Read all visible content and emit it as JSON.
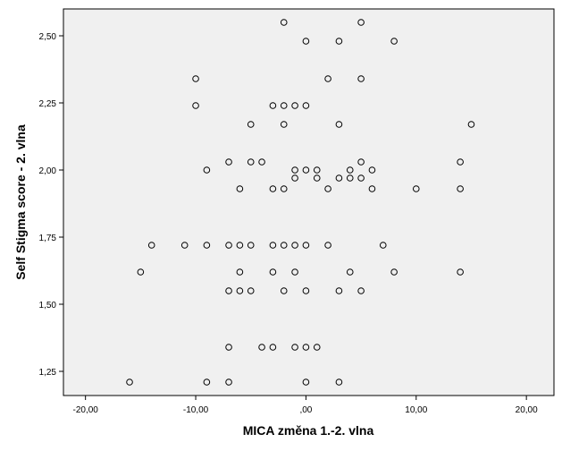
{
  "chart_data": {
    "type": "scatter",
    "xlabel": "MICA změna 1.-2. vlna",
    "ylabel": "Self Stigma score - 2. vlna",
    "xlim": [
      -22,
      22.5
    ],
    "ylim": [
      1.16,
      2.6
    ],
    "x_ticks": [
      -20,
      -10,
      0,
      10,
      20
    ],
    "x_tick_labels": [
      "-20,00",
      "-10,00",
      ",00",
      "10,00",
      "20,00"
    ],
    "y_ticks": [
      1.25,
      1.5,
      1.75,
      2.0,
      2.25,
      2.5
    ],
    "y_tick_labels": [
      "1,25",
      "1,50",
      "1,75",
      "2,00",
      "2,25",
      "2,50"
    ],
    "plot_background": "#f0f0f0",
    "marker": "open-circle",
    "grid": false,
    "points": [
      [
        -2,
        2.55
      ],
      [
        5,
        2.55
      ],
      [
        0,
        2.48
      ],
      [
        3,
        2.48
      ],
      [
        8,
        2.48
      ],
      [
        -10,
        2.34
      ],
      [
        2,
        2.34
      ],
      [
        5,
        2.34
      ],
      [
        -10,
        2.24
      ],
      [
        -3,
        2.24
      ],
      [
        -2,
        2.24
      ],
      [
        -1,
        2.24
      ],
      [
        0,
        2.24
      ],
      [
        -5,
        2.17
      ],
      [
        -2,
        2.17
      ],
      [
        3,
        2.17
      ],
      [
        15,
        2.17
      ],
      [
        -7,
        2.03
      ],
      [
        -5,
        2.03
      ],
      [
        -4,
        2.03
      ],
      [
        5,
        2.03
      ],
      [
        14,
        2.03
      ],
      [
        -9,
        2.0
      ],
      [
        -1,
        2.0
      ],
      [
        0,
        2.0
      ],
      [
        1,
        2.0
      ],
      [
        4,
        2.0
      ],
      [
        6,
        2.0
      ],
      [
        -1,
        1.97
      ],
      [
        1,
        1.97
      ],
      [
        3,
        1.97
      ],
      [
        4,
        1.97
      ],
      [
        5,
        1.97
      ],
      [
        -6,
        1.93
      ],
      [
        -3,
        1.93
      ],
      [
        -2,
        1.93
      ],
      [
        2,
        1.93
      ],
      [
        6,
        1.93
      ],
      [
        10,
        1.93
      ],
      [
        14,
        1.93
      ],
      [
        -14,
        1.72
      ],
      [
        -11,
        1.72
      ],
      [
        -9,
        1.72
      ],
      [
        -7,
        1.72
      ],
      [
        -6,
        1.72
      ],
      [
        -5,
        1.72
      ],
      [
        -3,
        1.72
      ],
      [
        -2,
        1.72
      ],
      [
        -1,
        1.72
      ],
      [
        0,
        1.72
      ],
      [
        2,
        1.72
      ],
      [
        7,
        1.72
      ],
      [
        -15,
        1.62
      ],
      [
        -6,
        1.62
      ],
      [
        -3,
        1.62
      ],
      [
        -1,
        1.62
      ],
      [
        4,
        1.62
      ],
      [
        8,
        1.62
      ],
      [
        14,
        1.62
      ],
      [
        -7,
        1.55
      ],
      [
        -6,
        1.55
      ],
      [
        -5,
        1.55
      ],
      [
        -2,
        1.55
      ],
      [
        0,
        1.55
      ],
      [
        3,
        1.55
      ],
      [
        5,
        1.55
      ],
      [
        -7,
        1.34
      ],
      [
        -4,
        1.34
      ],
      [
        -3,
        1.34
      ],
      [
        -1,
        1.34
      ],
      [
        0,
        1.34
      ],
      [
        1,
        1.34
      ],
      [
        -16,
        1.21
      ],
      [
        -9,
        1.21
      ],
      [
        -7,
        1.21
      ],
      [
        0,
        1.21
      ],
      [
        3,
        1.21
      ]
    ]
  }
}
